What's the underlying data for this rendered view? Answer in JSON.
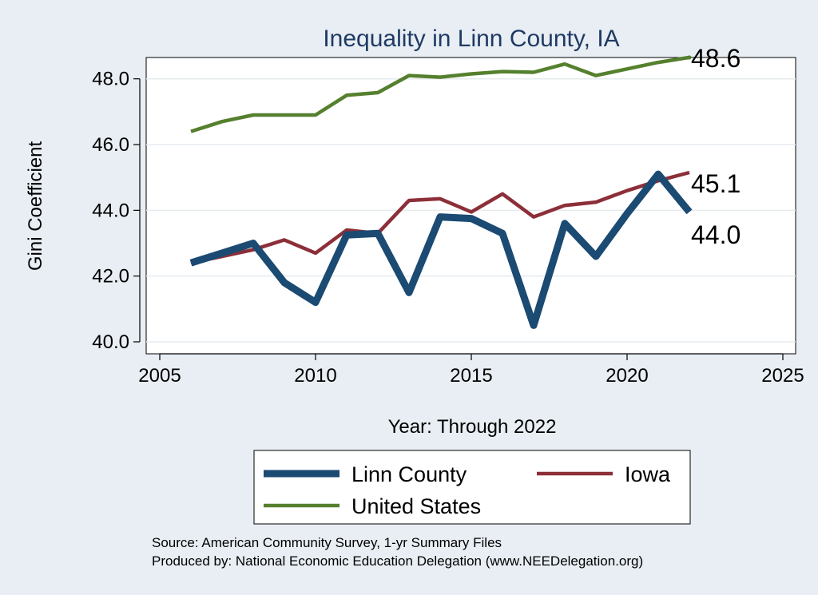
{
  "chart_data": {
    "type": "line",
    "title": "Inequality in Linn County, IA",
    "xlabel": "Year: Through 2022",
    "ylabel": "Gini Coefficient",
    "xlim": [
      2005,
      2025
    ],
    "ylim": [
      40.0,
      48.6
    ],
    "xticks": [
      2005,
      2010,
      2015,
      2020,
      2025
    ],
    "yticks": [
      40.0,
      42.0,
      44.0,
      46.0,
      48.0
    ],
    "ytick_labels": [
      "40.0",
      "42.0",
      "44.0",
      "46.0",
      "48.0"
    ],
    "grid": "horizontal",
    "x": [
      2006,
      2007,
      2008,
      2009,
      2010,
      2011,
      2012,
      2013,
      2014,
      2015,
      2016,
      2017,
      2018,
      2019,
      2020,
      2021,
      2022
    ],
    "series": [
      {
        "name": "Linn County",
        "color": "#1b4a72",
        "values": [
          42.4,
          42.7,
          43.0,
          41.8,
          41.2,
          43.25,
          43.3,
          41.5,
          43.8,
          43.75,
          43.3,
          40.5,
          43.6,
          42.6,
          43.9,
          45.1,
          43.95
        ],
        "end_label": "44.0"
      },
      {
        "name": "Iowa",
        "color": "#8c2f39",
        "values": [
          42.4,
          42.6,
          42.8,
          43.1,
          42.7,
          43.4,
          43.3,
          44.3,
          44.35,
          43.95,
          44.5,
          43.8,
          44.15,
          44.25,
          44.6,
          44.9,
          45.15
        ],
        "end_label": "45.1"
      },
      {
        "name": "United States",
        "color": "#55802e",
        "values": [
          46.4,
          46.7,
          46.9,
          46.9,
          46.9,
          47.5,
          47.58,
          48.1,
          48.05,
          48.15,
          48.22,
          48.2,
          48.45,
          48.1,
          48.3,
          48.5,
          48.65
        ],
        "end_label": "48.6"
      }
    ],
    "legend": {
      "placement": "bottom",
      "entries": [
        "Linn County",
        "Iowa",
        "United States"
      ]
    },
    "notes": [
      "Source: American Community Survey, 1-yr Summary Files",
      "Produced by: National Economic Education Delegation (www.NEEDelegation.org)"
    ]
  },
  "colors": {
    "background": "#e8eef3",
    "plot_background": "#ffffff",
    "grid": "#e6ebef",
    "title": "#1f3a64"
  }
}
